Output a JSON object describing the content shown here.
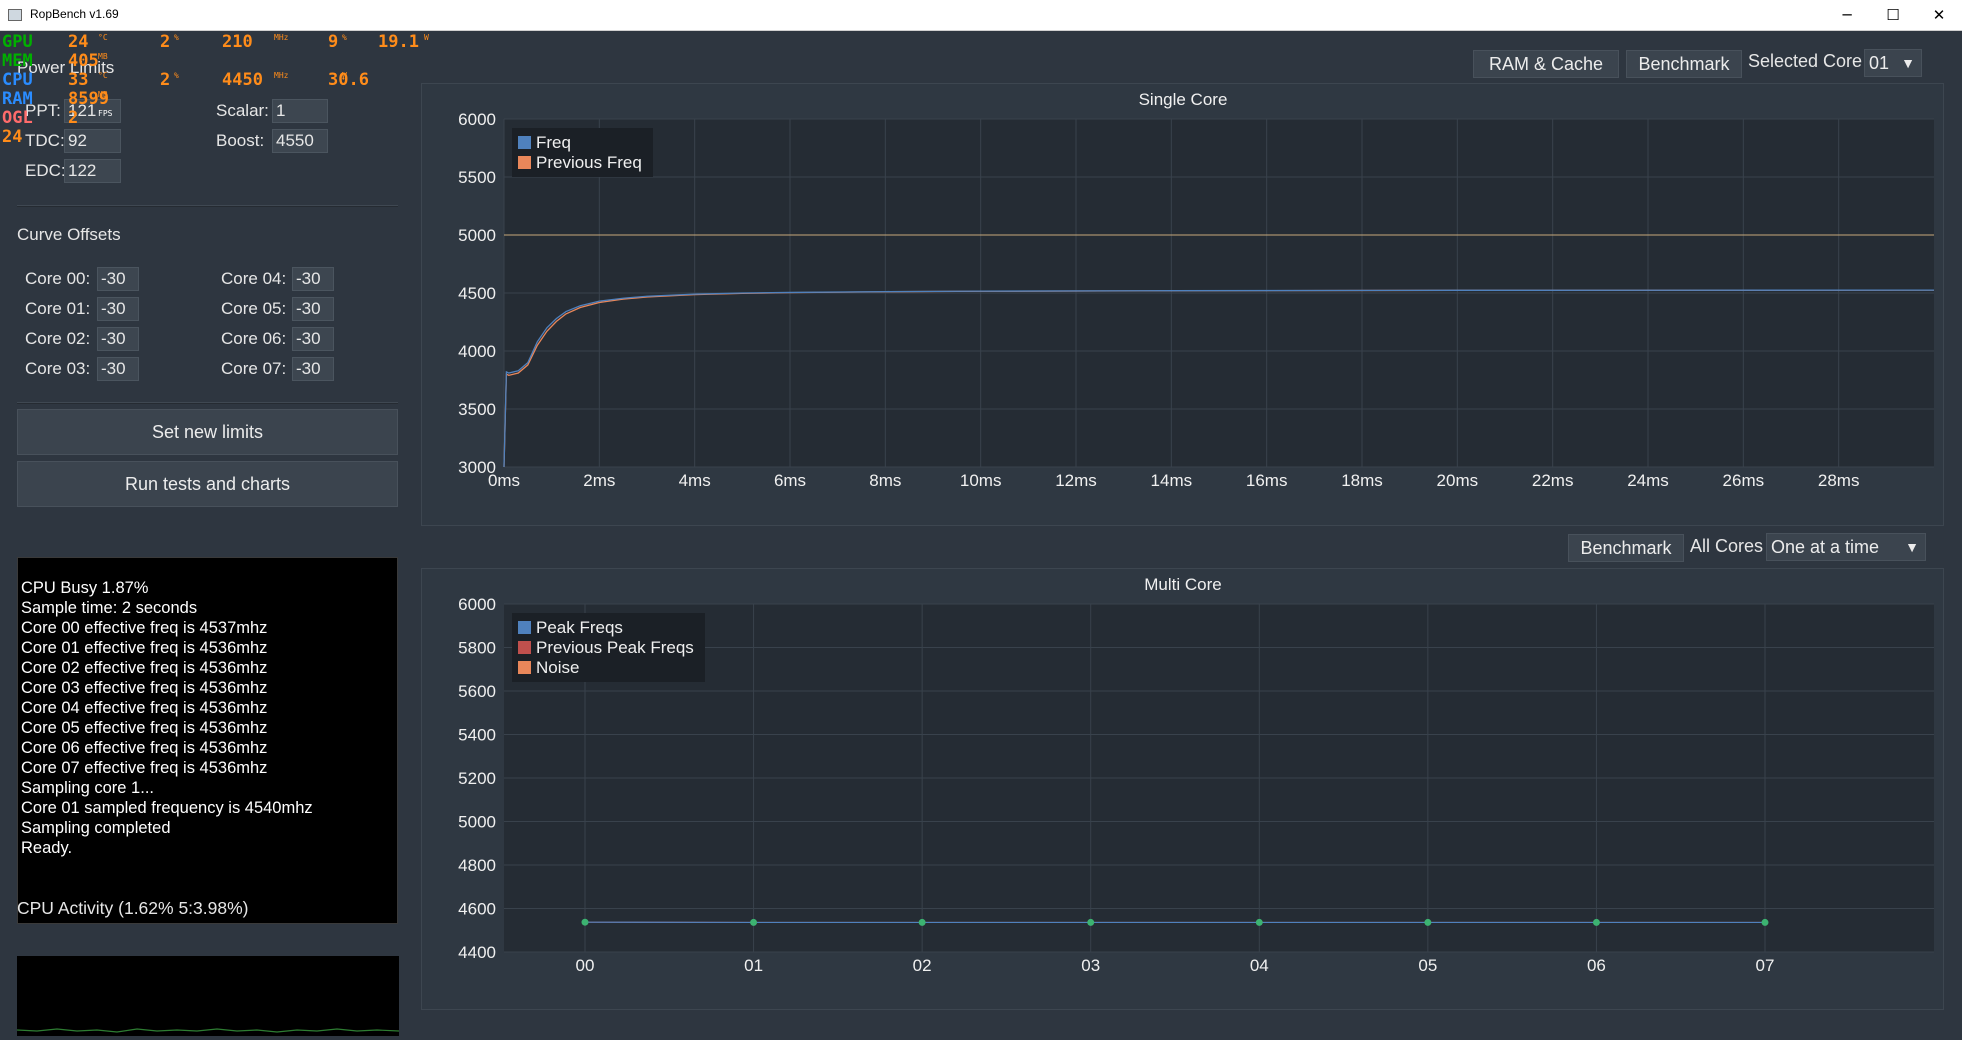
{
  "window": {
    "title": "RopBench v1.69",
    "controls": [
      "─",
      "☐",
      "✕"
    ]
  },
  "osd": {
    "rows": [
      {
        "label": "GPU",
        "label_color": "#00b000",
        "cols": [
          {
            "v": "24",
            "u": "°C"
          },
          {
            "v": "2",
            "u": "%"
          },
          {
            "v": "210",
            "u": "MHz"
          },
          {
            "v": "9",
            "u": "%"
          },
          {
            "v": "19.1",
            "u": "W"
          }
        ]
      },
      {
        "label": "MEM",
        "label_color": "#00b000",
        "cols": [
          {
            "v": "405",
            "u": "MB"
          }
        ]
      },
      {
        "label": "CPU",
        "label_color": "#2a8cff",
        "cols": [
          {
            "v": "33",
            "u": "°C"
          },
          {
            "v": "2",
            "u": "%"
          },
          {
            "v": "4450",
            "u": "MHz"
          },
          {
            "v": "30.6",
            "u": "W"
          }
        ]
      },
      {
        "label": "RAM",
        "label_color": "#2a8cff",
        "cols": [
          {
            "v": "8599",
            "u": "MB"
          }
        ]
      },
      {
        "label": "OGL",
        "label_color": "#ff6b6b",
        "cols": [
          {
            "v": "2",
            "u": "FPS"
          }
        ]
      },
      {
        "label": "24",
        "label_color": "#ff8c1a",
        "cols": []
      }
    ],
    "value_color": "#ff8c1a"
  },
  "power_limits": {
    "heading": "Power Limits",
    "ppt_label": "PPT:",
    "ppt_value": "121",
    "tdc_label": "TDC:",
    "tdc_value": "92",
    "edc_label": "EDC:",
    "edc_value": "122",
    "scalar_label": "Scalar:",
    "scalar_value": "1",
    "boost_label": "Boost:",
    "boost_value": "4550"
  },
  "curve_offsets": {
    "heading": "Curve Offsets",
    "cores": [
      {
        "label": "Core 00:",
        "value": "-30"
      },
      {
        "label": "Core 01:",
        "value": "-30"
      },
      {
        "label": "Core 02:",
        "value": "-30"
      },
      {
        "label": "Core 03:",
        "value": "-30"
      },
      {
        "label": "Core 04:",
        "value": "-30"
      },
      {
        "label": "Core 05:",
        "value": "-30"
      },
      {
        "label": "Core 06:",
        "value": "-30"
      },
      {
        "label": "Core 07:",
        "value": "-30"
      }
    ]
  },
  "buttons": {
    "set_limits": "Set new limits",
    "run_tests": "Run tests and charts",
    "ram_cache": "RAM & Cache",
    "benchmark_single": "Benchmark",
    "benchmark_multi": "Benchmark"
  },
  "selected_core": {
    "label": "Selected Core",
    "value": "01"
  },
  "all_cores": {
    "label": "All Cores",
    "value": "One at a time"
  },
  "log": [
    "CPU Busy 1.87%",
    "Sample time: 2 seconds",
    "Core 00 effective freq is 4537mhz",
    "Core 01 effective freq is 4536mhz",
    "Core 02 effective freq is 4536mhz",
    "Core 03 effective freq is 4536mhz",
    "Core 04 effective freq is 4536mhz",
    "Core 05 effective freq is 4536mhz",
    "Core 06 effective freq is 4536mhz",
    "Core 07 effective freq is 4536mhz",
    "Sampling core 1...",
    "Core 01 sampled frequency is 4540mhz",
    "Sampling completed",
    "Ready."
  ],
  "cpu_activity": {
    "label": "CPU Activity (1.62% 5:3.98%)"
  },
  "colors": {
    "freq": "#4f81bd",
    "previous_freq": "#e9875a",
    "peak_freqs": "#4f81bd",
    "previous_peak_freqs": "#c0504d",
    "noise": "#e9875a",
    "reference_line": "#c7a97a",
    "multi_points": "#3cb371",
    "activity_line": "#2e7d32"
  },
  "chart_data": [
    {
      "type": "line",
      "title": "Single Core",
      "xlabel": "",
      "ylabel": "",
      "x_tick_labels": [
        "0ms",
        "2ms",
        "4ms",
        "6ms",
        "8ms",
        "10ms",
        "12ms",
        "14ms",
        "16ms",
        "18ms",
        "20ms",
        "22ms",
        "24ms",
        "26ms",
        "28ms"
      ],
      "y_tick_labels": [
        "3000",
        "3500",
        "4000",
        "4500",
        "5000",
        "5500",
        "6000"
      ],
      "xlim": [
        0,
        30
      ],
      "ylim": [
        3000,
        6000
      ],
      "reference_y": 5000,
      "legend_position": "top-left",
      "grid": true,
      "series": [
        {
          "name": "Freq",
          "x": [
            0,
            0.05,
            0.1,
            0.3,
            0.5,
            0.7,
            0.9,
            1.1,
            1.3,
            1.6,
            2.0,
            2.5,
            3.0,
            4.0,
            5.0,
            6.0,
            8.0,
            10.0,
            14.0,
            20.0,
            30.0
          ],
          "y": [
            3000,
            3820,
            3810,
            3830,
            3900,
            4080,
            4200,
            4280,
            4340,
            4390,
            4430,
            4455,
            4472,
            4490,
            4500,
            4505,
            4512,
            4516,
            4520,
            4523,
            4525
          ]
        },
        {
          "name": "Previous Freq",
          "x": [
            0,
            0.05,
            0.1,
            0.3,
            0.5,
            0.7,
            0.9,
            1.1,
            1.3,
            1.6,
            2.0,
            2.5,
            3.0,
            4.0,
            5.0,
            6.0,
            8.0,
            10.0,
            14.0,
            20.0,
            30.0
          ],
          "y": [
            3000,
            3800,
            3790,
            3810,
            3880,
            4050,
            4170,
            4255,
            4320,
            4375,
            4418,
            4447,
            4466,
            4486,
            4497,
            4503,
            4511,
            4515,
            4519,
            4523,
            4525
          ]
        }
      ]
    },
    {
      "type": "line",
      "title": "Multi Core",
      "xlabel": "",
      "ylabel": "",
      "categories": [
        "00",
        "01",
        "02",
        "03",
        "04",
        "05",
        "06",
        "07"
      ],
      "y_tick_labels": [
        "4400",
        "4600",
        "4800",
        "5000",
        "5200",
        "5400",
        "5600",
        "5800",
        "6000"
      ],
      "ylim": [
        4400,
        6000
      ],
      "legend_position": "top-left",
      "grid": true,
      "series": [
        {
          "name": "Peak Freqs",
          "values": [
            4537,
            4536,
            4536,
            4536,
            4536,
            4536,
            4536,
            4536
          ]
        },
        {
          "name": "Previous Peak Freqs",
          "values": [
            4537,
            4536,
            4536,
            4536,
            4536,
            4536,
            4536,
            4536
          ]
        },
        {
          "name": "Noise",
          "values": [
            4537,
            4536,
            4536,
            4536,
            4536,
            4536,
            4536,
            4536
          ]
        }
      ]
    }
  ]
}
